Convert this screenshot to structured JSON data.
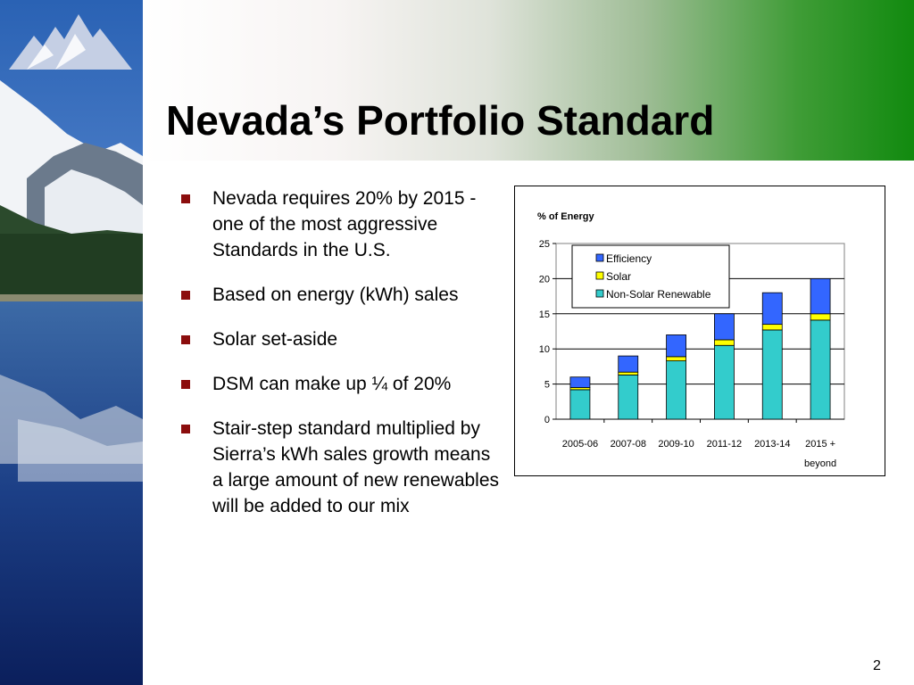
{
  "slide": {
    "title": "Nevada’s Portfolio Standard",
    "page_number": "2",
    "bullets": [
      "Nevada requires 20% by 2015 - one of the most aggressive Standards in the U.S.",
      "Based on energy (kWh) sales",
      "Solar set-aside",
      "DSM can make up ¼ of 20%",
      "Stair-step standard multiplied by Sierra’s kWh sales growth means a large amount of new renewables will be added to our mix"
    ]
  },
  "colors": {
    "bullet_marker": "#8b0d0d",
    "header_green": "#118a0f"
  },
  "chart_data": {
    "type": "bar",
    "stacked": true,
    "title": "",
    "ylabel": "% of Energy",
    "xlabel": "",
    "ylim": [
      0,
      25
    ],
    "yticks": [
      0,
      5,
      10,
      15,
      20,
      25
    ],
    "grid": true,
    "legend_position": "top-left",
    "categories": [
      "2005-06",
      "2007-08",
      "2009-10",
      "2011-12",
      "2013-14",
      "2015 + beyond"
    ],
    "series": [
      {
        "name": "Non-Solar Renewable",
        "color": "#33cccc",
        "values": [
          4.2,
          6.3,
          8.3,
          10.5,
          12.7,
          14.1
        ]
      },
      {
        "name": "Solar",
        "color": "#ffff00",
        "values": [
          0.3,
          0.4,
          0.6,
          0.8,
          0.8,
          0.9
        ]
      },
      {
        "name": "Efficiency",
        "color": "#3366ff",
        "values": [
          1.5,
          2.3,
          3.1,
          3.7,
          4.5,
          5.0
        ]
      }
    ],
    "legend_order": [
      "Efficiency",
      "Solar",
      "Non-Solar Renewable"
    ]
  }
}
